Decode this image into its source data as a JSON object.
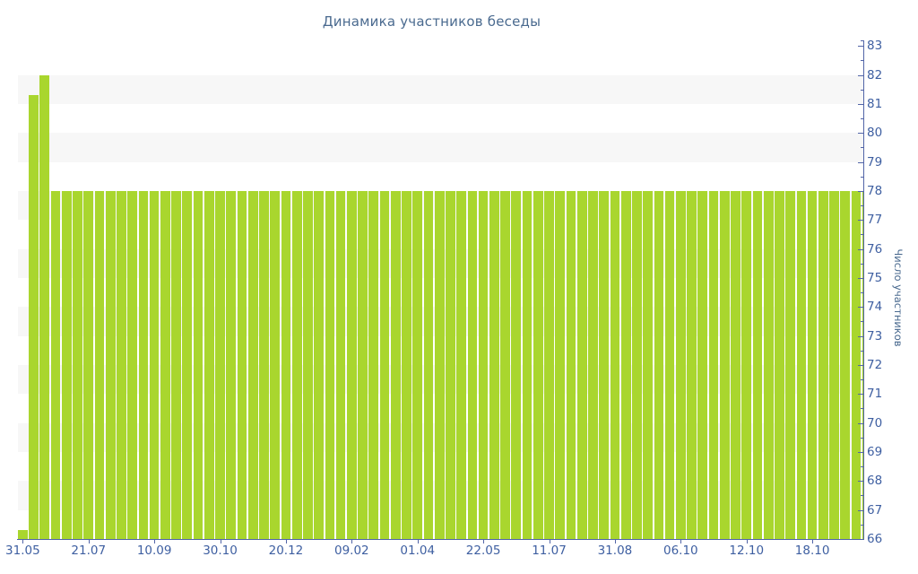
{
  "title": "Динамика участников беседы",
  "colors": {
    "bar": "#a9d62e",
    "stripe": "#f7f7f7",
    "axis": "#5265a8",
    "tick_text": "#3e5fa1",
    "title_text": "#4a6a8f"
  },
  "chart_data": {
    "type": "bar",
    "title": "Динамика участников беседы",
    "ylabel": "Число участников",
    "xlabel": "",
    "ylim": [
      66,
      83
    ],
    "y_major_step": 1,
    "y_minor_step": 0.5,
    "grid": "alternating horizontal stripes, gray bands between 82-81, 80-79, 78-77, 76-75, 74-73, 72-71, 70-69, 68-67",
    "legend_position": "none",
    "x_tick_labels": [
      "31.05",
      "21.07",
      "10.09",
      "30.10",
      "20.12",
      "09.02",
      "01.04",
      "22.05",
      "11.07",
      "31.08",
      "06.10",
      "12.10",
      "18.10"
    ],
    "x_label_every_n_bars": 6,
    "values": [
      66.3,
      81.3,
      82,
      78,
      78,
      78,
      78,
      78,
      78,
      78,
      78,
      78,
      78,
      78,
      78,
      78,
      78,
      78,
      78,
      78,
      78,
      78,
      78,
      78,
      78,
      78,
      78,
      78,
      78,
      78,
      78,
      78,
      78,
      78,
      78,
      78,
      78,
      78,
      78,
      78,
      78,
      78,
      78,
      78,
      78,
      78,
      78,
      78,
      78,
      78,
      78,
      78,
      78,
      78,
      78,
      78,
      78,
      78,
      78,
      78,
      78,
      78,
      78,
      78,
      78,
      78,
      78,
      78,
      78,
      78,
      78,
      78,
      78,
      78,
      78,
      78,
      78,
      78
    ]
  }
}
